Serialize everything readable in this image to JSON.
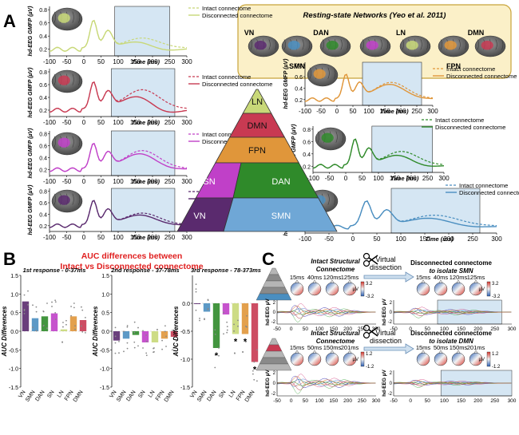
{
  "panels": {
    "a": "A",
    "b": "B",
    "c": "C"
  },
  "rsn_box": {
    "title": "Resting-state Networks (Yeo et al. 2011)",
    "networks": [
      "VN",
      "SMN",
      "DAN",
      "SN",
      "LN",
      "FPN",
      "DMN"
    ],
    "fill": "#fbf0c8",
    "stroke": "#c8a43a"
  },
  "legend": {
    "intact": "Intact connectome",
    "disconnected": "Disconnected connectome"
  },
  "gmfp_axis": {
    "ylabel": "hd-EEG GMFP (µV)",
    "xlabel": "Time (ms)",
    "xticks": [
      "-100",
      "-50",
      "0",
      "50",
      "100",
      "150",
      "200",
      "250",
      "300"
    ],
    "yticks": [
      "0.2",
      "0.4",
      "0.6",
      "0.8"
    ],
    "window_color": "#d5e6f3"
  },
  "network_colors": {
    "VN": "#5a2a6e",
    "SMN": "#4a8ec0",
    "DAN": "#2f8a2a",
    "SN": "#c040c8",
    "LN": "#c8d878",
    "FPN": "#e0963a",
    "DMN": "#c83a52"
  },
  "pyramid": [
    "LN",
    "DMN",
    "FPN",
    "SN",
    "DAN",
    "VN",
    "SMN"
  ],
  "chart_data": [
    {
      "type": "bar",
      "title": "1st response - 0-37ms",
      "ylabel": "AUC Differences",
      "categories": [
        "VN",
        "SMN",
        "DAN",
        "SN",
        "LN",
        "FPN",
        "DMN"
      ],
      "values": [
        0.8,
        0.35,
        0.4,
        0.48,
        0.05,
        0.4,
        0.3
      ],
      "ylim": [
        -1.5,
        1.5
      ],
      "yticks": [
        "1.5",
        "1.0",
        "0.5",
        "0.0",
        "-0.5",
        "-1.0",
        "-1.5"
      ],
      "significant": []
    },
    {
      "type": "bar",
      "title": "2nd response - 37-78ms",
      "ylabel": "AUC Differences",
      "categories": [
        "VN",
        "SMN",
        "DAN",
        "SN",
        "LN",
        "FPN",
        "DMN"
      ],
      "values": [
        -0.25,
        -0.2,
        -0.1,
        -0.3,
        -0.3,
        -0.2,
        -0.15
      ],
      "ylim": [
        -1.5,
        1.5
      ],
      "yticks": [
        "1.5",
        "1.0",
        "0.5",
        "0.0",
        "-0.5",
        "-1.0",
        "-1.5"
      ],
      "significant": []
    },
    {
      "type": "bar",
      "title": "3rd response - 78-373ms",
      "ylabel": "AUC Differences",
      "categories": [
        "VN",
        "SMN",
        "DAN",
        "SN",
        "LN",
        "FPN",
        "DMN"
      ],
      "values": [
        0.0,
        -0.15,
        -0.8,
        -0.2,
        -0.55,
        -0.55,
        -1.05
      ],
      "ylim": [
        -1.5,
        0.5
      ],
      "yticks": [
        "0.0",
        "-0.5",
        "-1.0",
        "-1.5"
      ],
      "significant": [
        "DAN",
        "LN",
        "FPN",
        "DMN"
      ]
    }
  ],
  "panel_b_title": [
    "AUC differences between",
    "Intact vs Disconnected connectome"
  ],
  "panel_c": {
    "intact_title": "Intact Structural",
    "intact_title2": "Connectome",
    "virtual": "Virtual",
    "dissection": "dissection",
    "disc_smn_title": "Disconnected connectome",
    "disc_smn_sub": "to isolate SMN",
    "disc_dmn_title": "Disconnected connectome",
    "disc_dmn_sub": "to isolate DMN",
    "times_top": [
      "15ms",
      "40ms",
      "120ms",
      "125ms"
    ],
    "times_top_right": [
      "15ms",
      "40ms",
      "120ms",
      "125ms"
    ],
    "times_bottom": [
      "15ms",
      "50ms",
      "150ms",
      "201ms"
    ],
    "times_bottom_right": [
      "15ms",
      "50ms",
      "150ms",
      "201ms"
    ],
    "scale_top": [
      "3.2",
      "-3.2"
    ],
    "scale_bottom": [
      "1.2",
      "-1.2"
    ],
    "ylabel": "hd-EEG µV",
    "xticks": [
      "-50",
      "0",
      "50",
      "100",
      "150",
      "200",
      "250",
      "300"
    ],
    "yticks": [
      "2",
      "0",
      "-2"
    ],
    "unit": "µV"
  }
}
